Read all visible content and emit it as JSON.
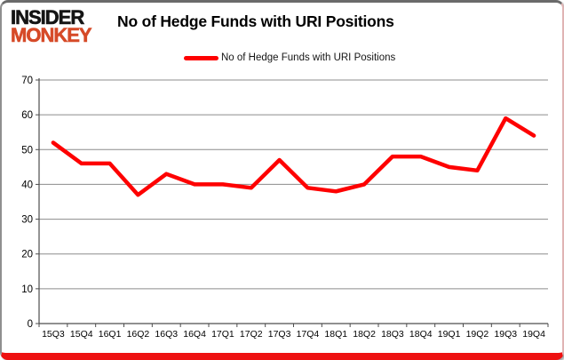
{
  "brand": {
    "line1": "INSIDER",
    "line2": "MONKEY",
    "monkey_color": "#d64a28"
  },
  "header": {
    "title": "No of Hedge Funds with URI Positions"
  },
  "legend": {
    "label": "No of Hedge Funds with URI Positions",
    "line_color": "#fe0000"
  },
  "colors": {
    "series_red": "#fe0000",
    "gridline_gray": "#8c8c8c",
    "axis_gray": "#4d4d4d",
    "bottom_border_red": "#ee1111",
    "label_black": "#000000"
  },
  "chart_data": {
    "type": "line",
    "title": "No of Hedge Funds with URI Positions",
    "categories": [
      "15Q3",
      "15Q4",
      "16Q1",
      "16Q2",
      "16Q3",
      "16Q4",
      "17Q1",
      "17Q2",
      "17Q3",
      "17Q4",
      "18Q1",
      "18Q2",
      "18Q3",
      "18Q4",
      "19Q1",
      "19Q2",
      "19Q3",
      "19Q4"
    ],
    "series": [
      {
        "name": "No of Hedge Funds with URI Positions",
        "color": "#fe0000",
        "values": [
          52,
          46,
          46,
          37,
          43,
          40,
          40,
          39,
          47,
          39,
          38,
          40,
          48,
          48,
          45,
          44,
          59,
          54
        ]
      }
    ],
    "xlabel": "",
    "ylabel": "",
    "ylim": [
      0,
      70
    ],
    "yticks": [
      0,
      10,
      20,
      30,
      40,
      50,
      60,
      70
    ],
    "grid": true,
    "legend_position": "top"
  }
}
